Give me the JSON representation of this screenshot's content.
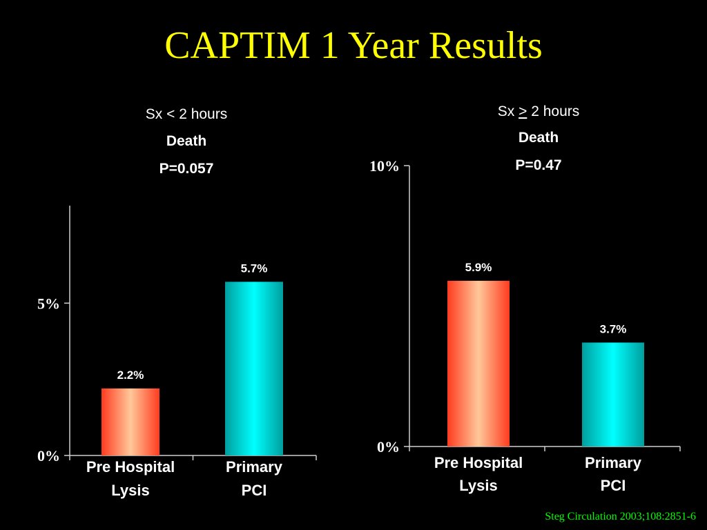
{
  "slide": {
    "title": "CAPTIM 1 Year Results",
    "citation": "Steg Circulation 2003;108:2851-6"
  },
  "colors": {
    "background": "#000000",
    "title": "#ffff00",
    "citation": "#00ff00",
    "axis": "#cfcfcf",
    "pre_hospital_lysis": "#ff5a3c",
    "pre_hospital_lysis_highlight": "#ffc89a",
    "primary_pci": "#00cccc",
    "primary_pci_highlight": "#00ffff"
  },
  "chart_data": [
    {
      "type": "bar",
      "subtitle_pre": "Sx < 2 hours",
      "subtitle_sign": "",
      "subtitle_post": "",
      "heading": "Death",
      "pvalue": "P=0.057",
      "categories": [
        [
          "Pre Hospital",
          "Lysis"
        ],
        [
          "Primary",
          "PCI"
        ]
      ],
      "values": [
        2.2,
        5.7
      ],
      "value_labels": [
        "2.2%",
        "5.7%"
      ],
      "yticks": [
        {
          "value": 0,
          "label": "0%"
        },
        {
          "value": 5,
          "label": "5%"
        }
      ],
      "ylim": [
        0,
        8.2
      ],
      "grid": false,
      "colors": [
        "pre_hospital_lysis",
        "primary_pci"
      ]
    },
    {
      "type": "bar",
      "subtitle_pre": "Sx ",
      "subtitle_sign": ">",
      "subtitle_post": " 2 hours",
      "heading": "Death",
      "pvalue": "P=0.47",
      "categories": [
        [
          "Pre Hospital",
          "Lysis"
        ],
        [
          "Primary",
          "PCI"
        ]
      ],
      "values": [
        5.9,
        3.7
      ],
      "value_labels": [
        "5.9%",
        "3.7%"
      ],
      "yticks": [
        {
          "value": 0,
          "label": "0%"
        },
        {
          "value": 10,
          "label": "10%"
        }
      ],
      "ylim": [
        0,
        10
      ],
      "grid": false,
      "colors": [
        "pre_hospital_lysis",
        "primary_pci"
      ]
    }
  ]
}
